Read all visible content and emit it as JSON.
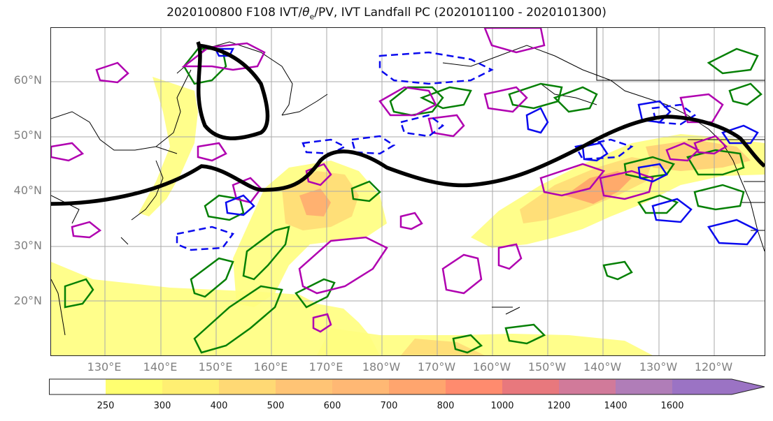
{
  "title": {
    "prefix": "2020100800 F108 IVT/",
    "theta": "θ",
    "theta_sub": "e",
    "suffix": "/PV, IVT Landfall PC (2020101100 - 2020101300)"
  },
  "map": {
    "lat_labels": [
      "60°N",
      "50°N",
      "40°N",
      "30°N",
      "20°N"
    ],
    "lon_labels": [
      "130°E",
      "140°E",
      "150°E",
      "160°E",
      "170°E",
      "180°W",
      "170°W",
      "160°W",
      "150°W",
      "140°W",
      "130°W",
      "120°W"
    ],
    "lon_range": [
      "120°E",
      "110°W"
    ],
    "lat_range": [
      "10°N",
      "70°N"
    ],
    "gridlines": true,
    "colors": {
      "ivt_fill": [
        "#fffe7e",
        "#ffe57a",
        "#ffcd74",
        "#ffb46e",
        "#ff9c68",
        "#f58b63",
        "#e87d72"
      ],
      "pc_positive": "#b000b0",
      "pc_negative": "#0a0aee",
      "theta_pv": "#058005",
      "jet": "#000000",
      "coast": "#000000"
    }
  },
  "colorbar": {
    "levels": [
      "250",
      "300",
      "400",
      "500",
      "600",
      "700",
      "800",
      "1000",
      "1200",
      "1400",
      "1600"
    ],
    "colors": [
      "#ffffff",
      "#ffff70",
      "#ffef72",
      "#ffd974",
      "#ffc475",
      "#ffb874",
      "#ffa56e",
      "#ff8b6e",
      "#e8787d",
      "#d17a9a",
      "#b07db8",
      "#9b73c4"
    ]
  }
}
